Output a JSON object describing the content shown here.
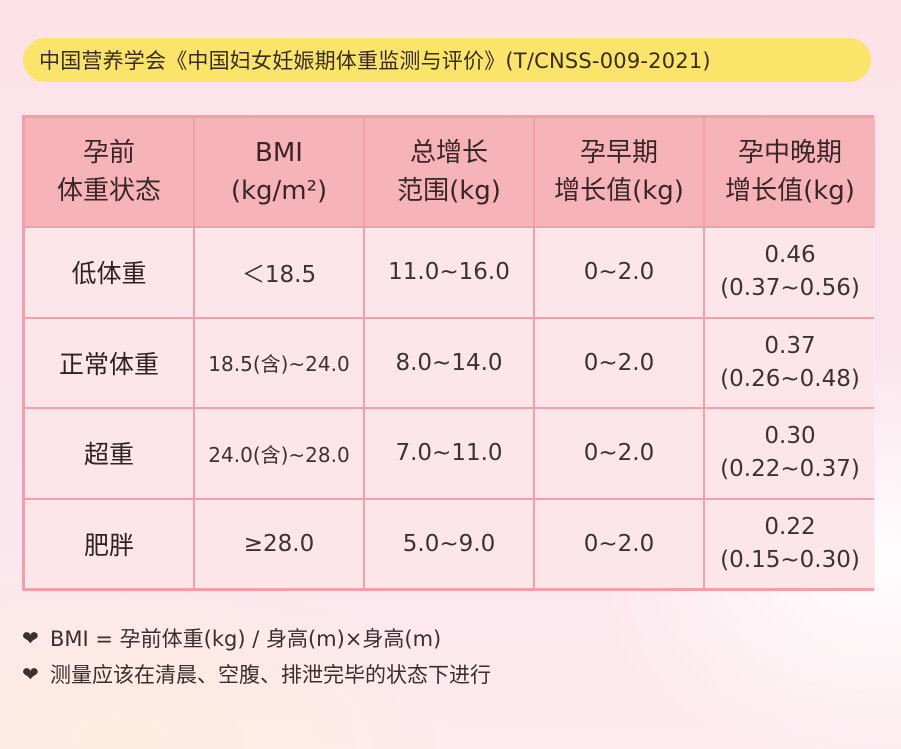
{
  "header": {
    "source": "中国营养学会《中国妇女妊娠期体重监测与评价》(T/CNSS-009-2021)"
  },
  "table": {
    "columns": [
      {
        "line1": "孕前",
        "line2": "体重状态"
      },
      {
        "line1": "BMI",
        "line2": "(kg/m²)"
      },
      {
        "line1": "总增长",
        "line2": "范围(kg)"
      },
      {
        "line1": "孕早期",
        "line2": "增长值(kg)"
      },
      {
        "line1": "孕中晚期",
        "line2": "增长值(kg)"
      }
    ],
    "rows": [
      {
        "status": "低体重",
        "bmi": "＜18.5",
        "total": "11.0~16.0",
        "early": "0~2.0",
        "mid_value": "0.46",
        "mid_range": "(0.37~0.56)"
      },
      {
        "status": "正常体重",
        "bmi": "18.5(含)~24.0",
        "total": "8.0~14.0",
        "early": "0~2.0",
        "mid_value": "0.37",
        "mid_range": "(0.26~0.48)"
      },
      {
        "status": "超重",
        "bmi": "24.0(含)~28.0",
        "total": "7.0~11.0",
        "early": "0~2.0",
        "mid_value": "0.30",
        "mid_range": "(0.22~0.37)"
      },
      {
        "status": "肥胖",
        "bmi": "≥28.0",
        "total": "5.0~9.0",
        "early": "0~2.0",
        "mid_value": "0.22",
        "mid_range": "(0.15~0.30)"
      }
    ]
  },
  "notes": {
    "formula": "BMI = 孕前体重(kg) / 身高(m)×身高(m)",
    "measurement": "测量应该在清晨、空腹、排泄完毕的状态下进行"
  },
  "icons": {
    "bullet": "heart-icon"
  },
  "colors": {
    "title_bg": "#fae56a",
    "header_bg": "#f6b4b9",
    "cell_bg": "#fdebef",
    "border": "#f2a0a8"
  }
}
